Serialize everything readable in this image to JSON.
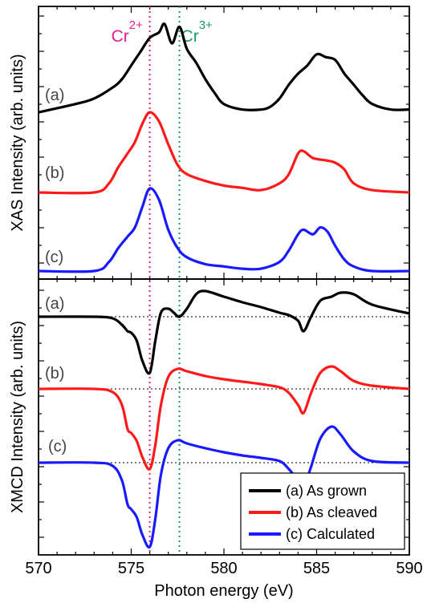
{
  "chart_data": [
    {
      "type": "line",
      "panel": "XAS",
      "ylabel": "XAS Intensity (arb. units)",
      "xlim": [
        570,
        590
      ],
      "y_ticks_labeled": false,
      "markers": [
        {
          "x": 576.0,
          "label": "Cr",
          "sup": "2+",
          "color": "#e0218a"
        },
        {
          "x": 577.6,
          "label": "Cr",
          "sup": "3+",
          "color": "#1a9a6b"
        }
      ],
      "series": [
        {
          "name": "(a)",
          "color": "#000000",
          "baseline": 0.29,
          "x": [
            570,
            572,
            573,
            574,
            574.5,
            575,
            575.5,
            576,
            576.5,
            576.8,
            577.2,
            577.6,
            578,
            578.5,
            579,
            579.5,
            580,
            581,
            582,
            582.5,
            583,
            583.5,
            584,
            584.5,
            585,
            585.5,
            586,
            586.5,
            587,
            587.5,
            588,
            589,
            590
          ],
          "y": [
            0.29,
            0.26,
            0.24,
            0.2,
            0.17,
            0.12,
            0.07,
            0.02,
            0.0,
            -0.03,
            0.04,
            -0.02,
            0.06,
            0.11,
            0.17,
            0.22,
            0.26,
            0.28,
            0.28,
            0.27,
            0.24,
            0.19,
            0.15,
            0.12,
            0.08,
            0.09,
            0.1,
            0.15,
            0.19,
            0.23,
            0.26,
            0.28,
            0.28
          ]
        },
        {
          "name": "(b)",
          "color": "#ff1a1a",
          "baseline": 0.9,
          "x": [
            570,
            573,
            573.8,
            574.3,
            574.8,
            575.2,
            575.6,
            576.0,
            576.5,
            577,
            577.5,
            578,
            579,
            580,
            581,
            582,
            583,
            583.5,
            584,
            584.3,
            584.8,
            585.5,
            586,
            586.5,
            587,
            588,
            590
          ],
          "y": [
            0.9,
            0.9,
            0.86,
            0.79,
            0.73,
            0.68,
            0.6,
            0.55,
            0.59,
            0.69,
            0.78,
            0.82,
            0.85,
            0.87,
            0.88,
            0.89,
            0.86,
            0.82,
            0.73,
            0.72,
            0.75,
            0.76,
            0.77,
            0.8,
            0.86,
            0.89,
            0.9
          ]
        },
        {
          "name": "(c)",
          "color": "#1a1aff",
          "baseline": 1.5,
          "x": [
            570,
            573,
            573.8,
            574.3,
            574.8,
            575.2,
            575.6,
            576.0,
            576.5,
            577,
            577.5,
            578,
            579,
            580,
            581,
            582,
            583,
            583.5,
            584,
            584.3,
            584.8,
            585.2,
            585.6,
            586,
            586.5,
            587,
            588,
            590
          ],
          "y": [
            1.5,
            1.5,
            1.46,
            1.4,
            1.35,
            1.31,
            1.22,
            1.14,
            1.19,
            1.32,
            1.4,
            1.44,
            1.47,
            1.48,
            1.49,
            1.49,
            1.46,
            1.41,
            1.34,
            1.32,
            1.34,
            1.31,
            1.33,
            1.39,
            1.45,
            1.48,
            1.5,
            1.5
          ]
        }
      ],
      "curve_labels": [
        "(a)",
        "(b)",
        "(c)"
      ]
    },
    {
      "type": "line",
      "panel": "XMCD",
      "ylabel": "XMCD Intensity (arb. units)",
      "xlabel": "Photon energy (eV)",
      "xlim": [
        570,
        590
      ],
      "x_ticks": [
        570,
        575,
        580,
        585,
        590
      ],
      "y_ticks_labeled": false,
      "series": [
        {
          "name": "(a) As grown",
          "color": "#000000",
          "baseline": 0.0,
          "x": [
            570,
            573,
            574,
            574.5,
            574.8,
            575.0,
            575.3,
            575.6,
            576.0,
            576.3,
            576.6,
            577.0,
            577.3,
            577.6,
            578,
            578.5,
            579,
            580,
            581,
            582,
            583,
            583.5,
            584,
            584.3,
            584.7,
            585.2,
            585.8,
            586.3,
            587,
            588,
            590
          ],
          "y": [
            0.0,
            0.0,
            -0.02,
            -0.1,
            -0.18,
            -0.2,
            -0.3,
            -0.55,
            -0.7,
            -0.3,
            0.05,
            0.1,
            0.05,
            0.0,
            0.1,
            0.28,
            0.32,
            0.25,
            0.18,
            0.12,
            0.05,
            0.02,
            -0.05,
            -0.18,
            0.0,
            0.2,
            0.25,
            0.3,
            0.28,
            0.15,
            0.04
          ]
        },
        {
          "name": "(b) As cleaved",
          "color": "#ff1a1a",
          "baseline": 0.0,
          "x": [
            570,
            573,
            574,
            574.5,
            574.8,
            575.0,
            575.3,
            575.6,
            576.0,
            576.3,
            576.6,
            577.0,
            577.5,
            578,
            579,
            580,
            581,
            582,
            583,
            583.5,
            584,
            584.3,
            584.7,
            585.2,
            585.8,
            586.3,
            587,
            588,
            590
          ],
          "y": [
            0.0,
            0.0,
            -0.04,
            -0.2,
            -0.5,
            -0.55,
            -0.65,
            -0.85,
            -1.0,
            -0.7,
            -0.2,
            0.15,
            0.25,
            0.22,
            0.16,
            0.12,
            0.09,
            0.06,
            0.02,
            -0.05,
            -0.2,
            -0.3,
            -0.05,
            0.2,
            0.28,
            0.22,
            0.1,
            0.04,
            0.0
          ]
        },
        {
          "name": "(c) Calculated",
          "color": "#1a1aff",
          "baseline": 0.0,
          "x": [
            570,
            573,
            574,
            574.5,
            574.8,
            575.0,
            575.3,
            575.6,
            576.0,
            576.3,
            576.6,
            577.0,
            577.5,
            578,
            579,
            580,
            581,
            582,
            583,
            583.5,
            584,
            584.3,
            584.7,
            585.2,
            585.8,
            586.3,
            587,
            588,
            590
          ],
          "y": [
            0.0,
            0.0,
            -0.04,
            -0.22,
            -0.52,
            -0.58,
            -0.68,
            -0.9,
            -1.05,
            -0.7,
            -0.15,
            0.18,
            0.28,
            0.24,
            0.18,
            0.13,
            0.09,
            0.06,
            0.02,
            -0.08,
            -0.22,
            -0.3,
            -0.05,
            0.3,
            0.45,
            0.35,
            0.14,
            0.02,
            0.0
          ]
        }
      ],
      "curve_labels": [
        "(a)",
        "(b)",
        "(c)"
      ],
      "legend": {
        "placement": "bottom-right",
        "entries": [
          {
            "label": "(a) As grown",
            "color": "#000000"
          },
          {
            "label": "(b) As cleaved",
            "color": "#ff1a1a"
          },
          {
            "label": "(c) Calculated",
            "color": "#1a1aff"
          }
        ]
      }
    }
  ]
}
